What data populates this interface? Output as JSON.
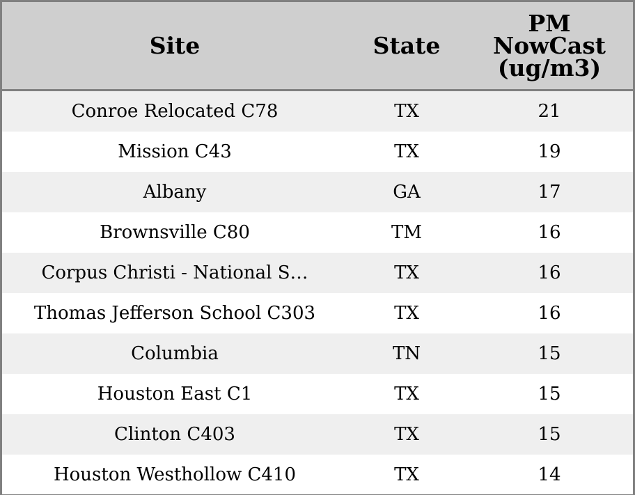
{
  "table": {
    "headers": {
      "site": "Site",
      "state": "State",
      "pm": "PM\nNowCast\n(ug/m3)"
    },
    "rows": [
      {
        "site": "Conroe Relocated C78",
        "state": "TX",
        "pm": "21"
      },
      {
        "site": "Mission C43",
        "state": "TX",
        "pm": "19"
      },
      {
        "site": "Albany",
        "state": "GA",
        "pm": "17"
      },
      {
        "site": "Brownsville C80",
        "state": "TM",
        "pm": "16"
      },
      {
        "site": "Corpus Christi - National S…",
        "state": "TX",
        "pm": "16"
      },
      {
        "site": "Thomas Jefferson School C303",
        "state": "TX",
        "pm": "16"
      },
      {
        "site": "Columbia",
        "state": "TN",
        "pm": "15"
      },
      {
        "site": "Houston East C1",
        "state": "TX",
        "pm": "15"
      },
      {
        "site": "Clinton C403",
        "state": "TX",
        "pm": "15"
      },
      {
        "site": "Houston Westhollow C410",
        "state": "TX",
        "pm": "14"
      }
    ],
    "colors": {
      "header_bg": "#cfcfcf",
      "stripe_bg": "#efefef",
      "border": "#808080"
    }
  }
}
